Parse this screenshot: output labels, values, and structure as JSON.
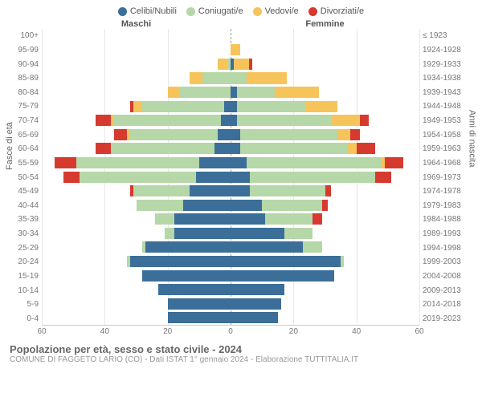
{
  "legend": [
    {
      "label": "Celibi/Nubili",
      "color": "#3b6e98"
    },
    {
      "label": "Coniugati/e",
      "color": "#b6d7a8"
    },
    {
      "label": "Vedovi/e",
      "color": "#f6c45a"
    },
    {
      "label": "Divorziati/e",
      "color": "#d63a2f"
    }
  ],
  "headers": {
    "male": "Maschi",
    "female": "Femmine"
  },
  "y_left_title": "Fasce di età",
  "y_right_title": "Anni di nascita",
  "title": "Popolazione per età, sesso e stato civile - 2024",
  "subtitle": "COMUNE DI FAGGETO LARIO (CO) - Dati ISTAT 1° gennaio 2024 - Elaborazione TUTTITALIA.IT",
  "x_max": 60,
  "x_ticks": [
    60,
    40,
    20,
    0,
    20,
    40,
    60
  ],
  "grid_color": "#e8e8e8",
  "center_line_color": "#999999",
  "background_color": "#ffffff",
  "bars": [
    {
      "age": "100+",
      "birth": "≤ 1923",
      "m": {
        "c": 0,
        "co": 0,
        "v": 0,
        "d": 0
      },
      "f": {
        "c": 0,
        "co": 0,
        "v": 0,
        "d": 0
      }
    },
    {
      "age": "95-99",
      "birth": "1924-1928",
      "m": {
        "c": 0,
        "co": 0,
        "v": 0,
        "d": 0
      },
      "f": {
        "c": 0,
        "co": 0,
        "v": 3,
        "d": 0
      }
    },
    {
      "age": "90-94",
      "birth": "1929-1933",
      "m": {
        "c": 0,
        "co": 1,
        "v": 3,
        "d": 0
      },
      "f": {
        "c": 1,
        "co": 0,
        "v": 5,
        "d": 1
      }
    },
    {
      "age": "85-89",
      "birth": "1934-1938",
      "m": {
        "c": 0,
        "co": 9,
        "v": 4,
        "d": 0
      },
      "f": {
        "c": 0,
        "co": 5,
        "v": 13,
        "d": 0
      }
    },
    {
      "age": "80-84",
      "birth": "1939-1943",
      "m": {
        "c": 0,
        "co": 16,
        "v": 4,
        "d": 0
      },
      "f": {
        "c": 2,
        "co": 12,
        "v": 14,
        "d": 0
      }
    },
    {
      "age": "75-79",
      "birth": "1944-1948",
      "m": {
        "c": 2,
        "co": 26,
        "v": 3,
        "d": 1
      },
      "f": {
        "c": 2,
        "co": 22,
        "v": 10,
        "d": 0
      }
    },
    {
      "age": "70-74",
      "birth": "1949-1953",
      "m": {
        "c": 3,
        "co": 34,
        "v": 1,
        "d": 5
      },
      "f": {
        "c": 2,
        "co": 30,
        "v": 9,
        "d": 3
      }
    },
    {
      "age": "65-69",
      "birth": "1954-1958",
      "m": {
        "c": 4,
        "co": 28,
        "v": 1,
        "d": 4
      },
      "f": {
        "c": 3,
        "co": 31,
        "v": 4,
        "d": 3
      }
    },
    {
      "age": "60-64",
      "birth": "1959-1963",
      "m": {
        "c": 5,
        "co": 33,
        "v": 0,
        "d": 5
      },
      "f": {
        "c": 3,
        "co": 34,
        "v": 3,
        "d": 6
      }
    },
    {
      "age": "55-59",
      "birth": "1964-1968",
      "m": {
        "c": 10,
        "co": 39,
        "v": 0,
        "d": 7
      },
      "f": {
        "c": 5,
        "co": 43,
        "v": 1,
        "d": 6
      }
    },
    {
      "age": "50-54",
      "birth": "1969-1973",
      "m": {
        "c": 11,
        "co": 37,
        "v": 0,
        "d": 5
      },
      "f": {
        "c": 6,
        "co": 40,
        "v": 0,
        "d": 5
      }
    },
    {
      "age": "45-49",
      "birth": "1974-1978",
      "m": {
        "c": 13,
        "co": 18,
        "v": 0,
        "d": 1
      },
      "f": {
        "c": 6,
        "co": 24,
        "v": 0,
        "d": 2
      }
    },
    {
      "age": "40-44",
      "birth": "1979-1983",
      "m": {
        "c": 15,
        "co": 15,
        "v": 0,
        "d": 0
      },
      "f": {
        "c": 10,
        "co": 19,
        "v": 0,
        "d": 2
      }
    },
    {
      "age": "35-39",
      "birth": "1984-1988",
      "m": {
        "c": 18,
        "co": 6,
        "v": 0,
        "d": 0
      },
      "f": {
        "c": 11,
        "co": 15,
        "v": 0,
        "d": 3
      }
    },
    {
      "age": "30-34",
      "birth": "1989-1993",
      "m": {
        "c": 18,
        "co": 3,
        "v": 0,
        "d": 0
      },
      "f": {
        "c": 17,
        "co": 9,
        "v": 0,
        "d": 0
      }
    },
    {
      "age": "25-29",
      "birth": "1994-1998",
      "m": {
        "c": 27,
        "co": 1,
        "v": 0,
        "d": 0
      },
      "f": {
        "c": 23,
        "co": 6,
        "v": 0,
        "d": 0
      }
    },
    {
      "age": "20-24",
      "birth": "1999-2003",
      "m": {
        "c": 32,
        "co": 1,
        "v": 0,
        "d": 0
      },
      "f": {
        "c": 35,
        "co": 1,
        "v": 0,
        "d": 0
      }
    },
    {
      "age": "15-19",
      "birth": "2004-2008",
      "m": {
        "c": 28,
        "co": 0,
        "v": 0,
        "d": 0
      },
      "f": {
        "c": 33,
        "co": 0,
        "v": 0,
        "d": 0
      }
    },
    {
      "age": "10-14",
      "birth": "2009-2013",
      "m": {
        "c": 23,
        "co": 0,
        "v": 0,
        "d": 0
      },
      "f": {
        "c": 17,
        "co": 0,
        "v": 0,
        "d": 0
      }
    },
    {
      "age": "5-9",
      "birth": "2014-2018",
      "m": {
        "c": 20,
        "co": 0,
        "v": 0,
        "d": 0
      },
      "f": {
        "c": 16,
        "co": 0,
        "v": 0,
        "d": 0
      }
    },
    {
      "age": "0-4",
      "birth": "2019-2023",
      "m": {
        "c": 20,
        "co": 0,
        "v": 0,
        "d": 0
      },
      "f": {
        "c": 15,
        "co": 0,
        "v": 0,
        "d": 0
      }
    }
  ],
  "series_colors": {
    "c": "#3b6e98",
    "co": "#b6d7a8",
    "v": "#f6c45a",
    "d": "#d63a2f"
  }
}
